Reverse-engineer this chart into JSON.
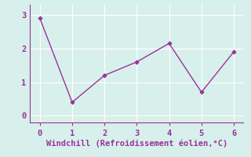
{
  "x": [
    0,
    1,
    2,
    3,
    4,
    5,
    6
  ],
  "y": [
    2.9,
    0.4,
    1.2,
    1.6,
    2.15,
    0.7,
    1.9
  ],
  "line_color": "#993399",
  "marker": "D",
  "marker_size": 2.5,
  "xlabel": "Windchill (Refroidissement éolien,°C)",
  "xlim": [
    -0.3,
    6.3
  ],
  "ylim": [
    -0.2,
    3.3
  ],
  "xticks": [
    0,
    1,
    2,
    3,
    4,
    5,
    6
  ],
  "yticks": [
    0,
    1,
    2,
    3
  ],
  "background_color": "#d8f0ec",
  "grid_color": "#b8ddd8",
  "spine_color": "#993399",
  "xlabel_fontsize": 7.5,
  "tick_fontsize": 7.5,
  "linewidth": 1.0
}
